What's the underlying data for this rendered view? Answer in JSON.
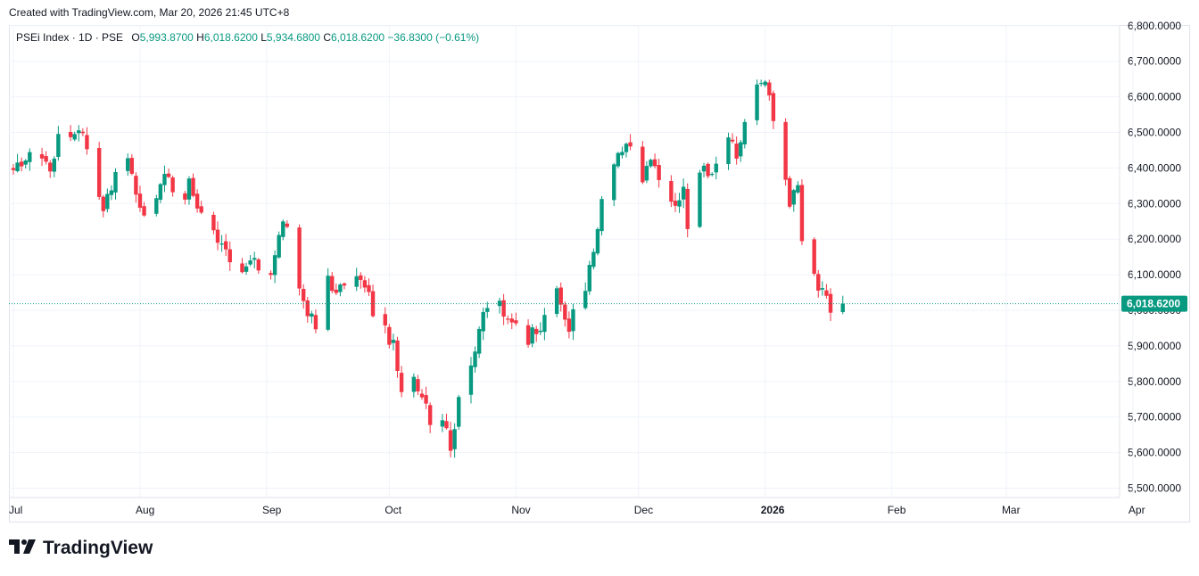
{
  "header": {
    "created_text": "Created with TradingView.com, Mar 20, 2026 21:45 UTC+8"
  },
  "legend": {
    "symbol": "PSEi Index · 1D · PSE",
    "open_label": "O",
    "open": "5,993.8700",
    "high_label": "H",
    "high": "6,018.6200",
    "low_label": "L",
    "low": "5,934.6800",
    "close_label": "C",
    "close": "6,018.6200",
    "change": "−36.8300 (−0.61%)"
  },
  "price_tag": "6,018.6200",
  "brand": {
    "name": "TradingView",
    "icon": "tradingview-logo-icon"
  },
  "colors": {
    "up": "#089981",
    "down": "#f23645",
    "grid": "#f0f3fa",
    "text": "#131722"
  },
  "chart_data": {
    "type": "candlestick",
    "title": "PSEi Index · 1D · PSE",
    "ylim": [
      5500,
      6800
    ],
    "y_ticks": [
      "5,500.0000",
      "5,600.0000",
      "5,700.0000",
      "5,800.0000",
      "5,900.0000",
      "6,000.0000",
      "6,100.0000",
      "6,200.0000",
      "6,300.0000",
      "6,400.0000",
      "6,500.0000",
      "6,600.0000",
      "6,700.0000",
      "6,800.0000"
    ],
    "y_tick_values": [
      5500,
      5600,
      5700,
      5800,
      5900,
      6000,
      6100,
      6200,
      6300,
      6400,
      6500,
      6600,
      6700,
      6800
    ],
    "x_labels": [
      {
        "label": "Jul",
        "day": 0,
        "bold": false
      },
      {
        "label": "Aug",
        "day": 31,
        "bold": false
      },
      {
        "label": "Sep",
        "day": 62,
        "bold": false
      },
      {
        "label": "Oct",
        "day": 92,
        "bold": false
      },
      {
        "label": "Nov",
        "day": 123,
        "bold": false
      },
      {
        "label": "Dec",
        "day": 153,
        "bold": false
      },
      {
        "label": "2026",
        "day": 184,
        "bold": true
      },
      {
        "label": "Feb",
        "day": 215,
        "bold": false
      },
      {
        "label": "Mar",
        "day": 243,
        "bold": false
      },
      {
        "label": "Apr",
        "day": 274,
        "bold": false
      }
    ],
    "last_close": 6018.62,
    "close_anchors": [
      [
        0,
        6380
      ],
      [
        2,
        6420
      ],
      [
        6,
        6440
      ],
      [
        9,
        6400
      ],
      [
        11,
        6480
      ],
      [
        13,
        6470
      ],
      [
        16,
        6520
      ],
      [
        18,
        6460
      ],
      [
        20,
        6320
      ],
      [
        22,
        6290
      ],
      [
        24,
        6340
      ],
      [
        26,
        6460
      ],
      [
        28,
        6420
      ],
      [
        31,
        6300
      ],
      [
        33,
        6240
      ],
      [
        35,
        6320
      ],
      [
        37,
        6380
      ],
      [
        39,
        6340
      ],
      [
        41,
        6270
      ],
      [
        43,
        6360
      ],
      [
        45,
        6290
      ],
      [
        47,
        6280
      ],
      [
        49,
        6240
      ],
      [
        50,
        6200
      ],
      [
        52,
        6160
      ],
      [
        54,
        6080
      ],
      [
        56,
        6100
      ],
      [
        58,
        6140
      ],
      [
        60,
        6120
      ],
      [
        62,
        6060
      ],
      [
        64,
        6150
      ],
      [
        66,
        6260
      ],
      [
        68,
        6180
      ],
      [
        70,
        6060
      ],
      [
        72,
        6000
      ],
      [
        74,
        5950
      ],
      [
        75,
        6050
      ],
      [
        77,
        6100
      ],
      [
        79,
        6040
      ],
      [
        81,
        6080
      ],
      [
        83,
        6100
      ],
      [
        85,
        6080
      ],
      [
        87,
        6040
      ],
      [
        89,
        5950
      ],
      [
        91,
        5940
      ],
      [
        93,
        5900
      ],
      [
        95,
        5760
      ],
      [
        97,
        5840
      ],
      [
        99,
        5790
      ],
      [
        101,
        5740
      ],
      [
        103,
        5650
      ],
      [
        105,
        5700
      ],
      [
        107,
        5620
      ],
      [
        109,
        5740
      ],
      [
        111,
        5800
      ],
      [
        113,
        5900
      ],
      [
        115,
        6000
      ],
      [
        117,
        5980
      ],
      [
        119,
        6020
      ],
      [
        121,
        5960
      ],
      [
        123,
        5960
      ],
      [
        125,
        5900
      ],
      [
        127,
        5940
      ],
      [
        129,
        5960
      ],
      [
        131,
        6040
      ],
      [
        133,
        6060
      ],
      [
        135,
        5980
      ],
      [
        136,
        5940
      ],
      [
        138,
        6040
      ],
      [
        140,
        6070
      ],
      [
        142,
        6160
      ],
      [
        144,
        6300
      ],
      [
        146,
        6360
      ],
      [
        148,
        6430
      ],
      [
        150,
        6470
      ],
      [
        152,
        6440
      ],
      [
        154,
        6360
      ],
      [
        156,
        6420
      ],
      [
        158,
        6370
      ],
      [
        160,
        6320
      ],
      [
        162,
        6290
      ],
      [
        164,
        6340
      ],
      [
        165,
        6220
      ],
      [
        167,
        6350
      ],
      [
        169,
        6400
      ],
      [
        171,
        6390
      ],
      [
        173,
        6440
      ],
      [
        175,
        6500
      ],
      [
        177,
        6440
      ],
      [
        179,
        6530
      ],
      [
        181,
        6600
      ],
      [
        183,
        6640
      ],
      [
        185,
        6610
      ],
      [
        187,
        6480
      ],
      [
        188,
        6420
      ],
      [
        190,
        6300
      ],
      [
        192,
        6350
      ],
      [
        193,
        6200
      ],
      [
        195,
        6160
      ],
      [
        197,
        6060
      ],
      [
        199,
        6040
      ],
      [
        201,
        5980
      ],
      [
        203,
        6020
      ]
    ]
  }
}
